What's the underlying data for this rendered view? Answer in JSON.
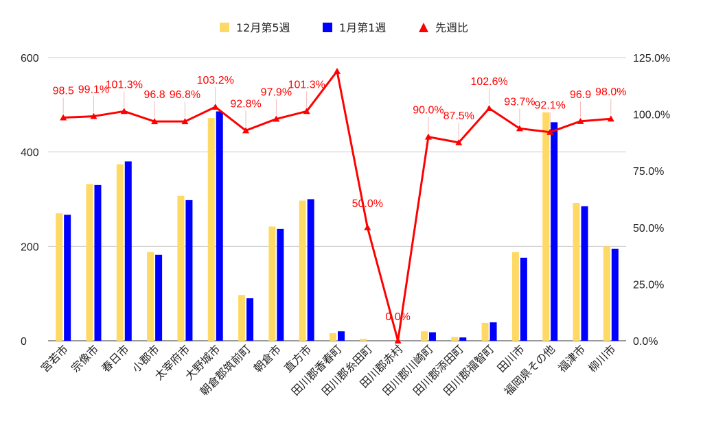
{
  "chart_data": {
    "type": "bar",
    "categories": [
      "宮若市",
      "宗像市",
      "春日市",
      "小郡市",
      "太宰府市",
      "大野城市",
      "朝倉郡筑前町",
      "朝倉市",
      "直方市",
      "田川郡香春町",
      "田川郡糸田町",
      "田川郡赤村",
      "田川郡川崎町",
      "田川郡添田町",
      "田川郡福智町",
      "田川市",
      "福岡県その他",
      "福津市",
      "柳川市"
    ],
    "series": [
      {
        "name": "12月第5週",
        "type": "bar",
        "axis": "left",
        "color": "#FFD966",
        "values": [
          270,
          332,
          374,
          188,
          307,
          472,
          97,
          242,
          297,
          16,
          4,
          0,
          20,
          8,
          38,
          188,
          484,
          292,
          200
        ]
      },
      {
        "name": "1月第1週",
        "type": "bar",
        "axis": "left",
        "color": "#0000FF",
        "values": [
          267,
          330,
          380,
          182,
          298,
          486,
          90,
          237,
          300,
          20,
          0,
          0,
          18,
          7,
          39,
          176,
          463,
          285,
          195
        ]
      },
      {
        "name": "先週比",
        "type": "line",
        "axis": "right",
        "color": "#FF0000",
        "values": [
          98.5,
          99.1,
          101.3,
          96.8,
          96.8,
          103.2,
          92.8,
          97.9,
          101.3,
          119.0,
          50.0,
          0.0,
          90.0,
          87.5,
          102.6,
          93.7,
          92.1,
          96.9,
          98.0
        ],
        "labels": [
          "98.5",
          "99.1%",
          "101.3%",
          "96.8",
          "96.8%",
          "103.2%",
          "92.8%",
          "97.9%",
          "101.3%",
          "",
          "50.0%",
          "0.0%",
          "90.0%",
          "87.5%",
          "102.6%",
          "93.7%",
          "92.1%",
          "96.9",
          "98.0%"
        ]
      }
    ],
    "yaxis_left": {
      "min": 0,
      "max": 600,
      "ticks": [
        "0",
        "200",
        "400",
        "600"
      ],
      "tick_values": [
        0,
        200,
        400,
        600
      ]
    },
    "yaxis_right": {
      "min": 0,
      "max": 125,
      "ticks": [
        "0.0%",
        "25.0%",
        "50.0%",
        "75.0%",
        "100.0%",
        "125.0%"
      ],
      "tick_values": [
        0,
        25,
        50,
        75,
        100,
        125
      ]
    },
    "grid": true,
    "legend_position": "top"
  }
}
